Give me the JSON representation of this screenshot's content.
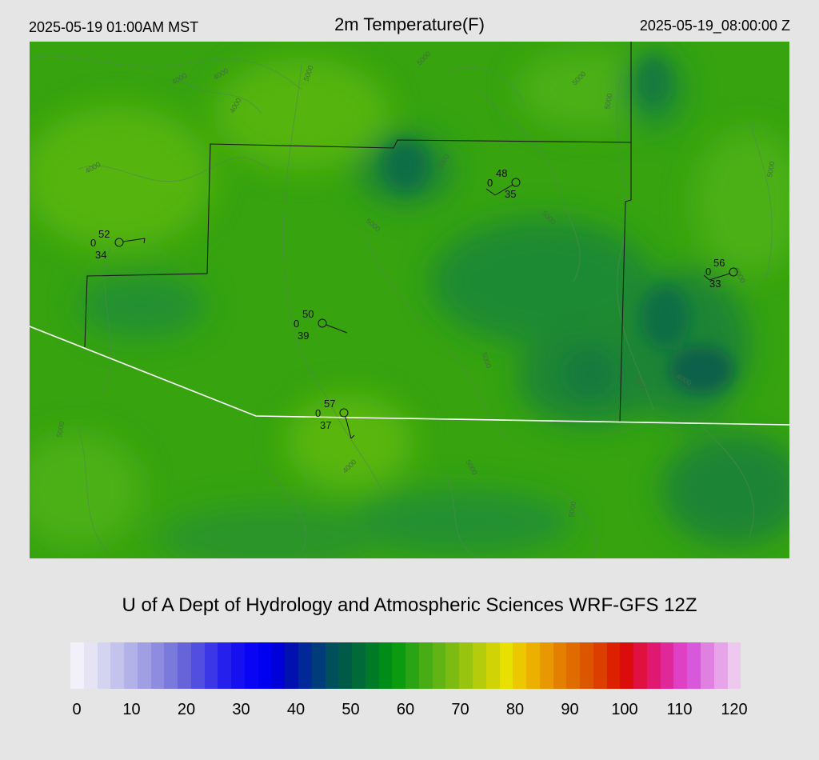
{
  "header": {
    "local_time": "2025-05-19 01:00AM MST",
    "title": "2m Temperature(F)",
    "utc_time": "2025-05-19_08:00:00 Z"
  },
  "footer": "U of A Dept of Hydrology and Atmospheric Sciences WRF-GFS 12Z",
  "map": {
    "stations": [
      {
        "temp": "52",
        "left": "0",
        "dew": "34"
      },
      {
        "temp": "48",
        "left": "0",
        "dew": "35"
      },
      {
        "temp": "50",
        "left": "0",
        "dew": "39"
      },
      {
        "temp": "57",
        "left": "0",
        "dew": "37"
      },
      {
        "temp": "56",
        "left": "0",
        "dew": "33"
      }
    ],
    "contours": [
      "4000",
      "4000",
      "4000",
      "5000",
      "5000",
      "5000",
      "4000",
      "5000",
      "5000",
      "5000",
      "5000",
      "5000",
      "5000",
      "4000",
      "5000",
      "5000",
      "5000",
      "5000",
      "4000",
      "5000"
    ],
    "colors": {
      "field_base": "#36a30f",
      "field_light": "#55b411",
      "field_dark": "#127a3c",
      "field_darkest": "#0b6048",
      "county_line": "#1a1a1a",
      "state_line": "#ffffff"
    }
  },
  "colorbar": {
    "ticks": [
      "0",
      "10",
      "20",
      "30",
      "40",
      "50",
      "60",
      "70",
      "80",
      "90",
      "100",
      "110",
      "120"
    ],
    "min": 0,
    "max": 120,
    "step": 2.5,
    "colors": [
      "#f2f0f8",
      "#e6e4f4",
      "#d5d4f0",
      "#c4c3ec",
      "#b2b1e8",
      "#a09fe4",
      "#8d8ce0",
      "#7a79dc",
      "#6664d8",
      "#514ee0",
      "#3b37e6",
      "#2520ec",
      "#1610f0",
      "#0a04f4",
      "#0000f0",
      "#0000d8",
      "#0011b0",
      "#002896",
      "#003c7a",
      "#00505c",
      "#005a48",
      "#006a38",
      "#007a26",
      "#008c18",
      "#0c9a10",
      "#2aa414",
      "#48ac14",
      "#62b414",
      "#7cbc12",
      "#98c410",
      "#b4cc0c",
      "#d0d406",
      "#e8e000",
      "#ecc800",
      "#ecb000",
      "#e89800",
      "#e48000",
      "#e06c00",
      "#dc5600",
      "#dc3e00",
      "#dc2000",
      "#dc0c0c",
      "#e01040",
      "#e01870",
      "#e02898",
      "#e040c4",
      "#d858dc",
      "#e080e0",
      "#e8a4e8",
      "#eec8ee"
    ]
  }
}
